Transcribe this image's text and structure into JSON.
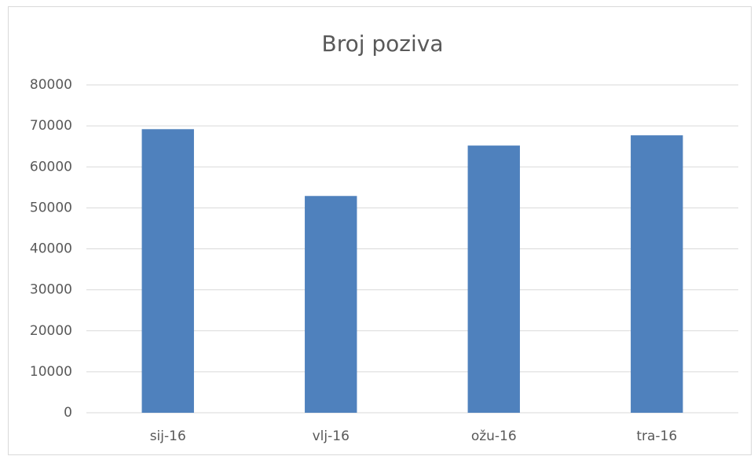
{
  "chart_data": {
    "type": "bar",
    "title": "Broj poziva",
    "categories": [
      "sij-16",
      "vlj-16",
      "ožu-16",
      "tra-16"
    ],
    "values": [
      69200,
      52900,
      65200,
      67700
    ],
    "color": "#4f81bd",
    "ylim": [
      0,
      80000
    ],
    "yticks": [
      0,
      10000,
      20000,
      30000,
      40000,
      50000,
      60000,
      70000,
      80000
    ],
    "grid": true
  }
}
